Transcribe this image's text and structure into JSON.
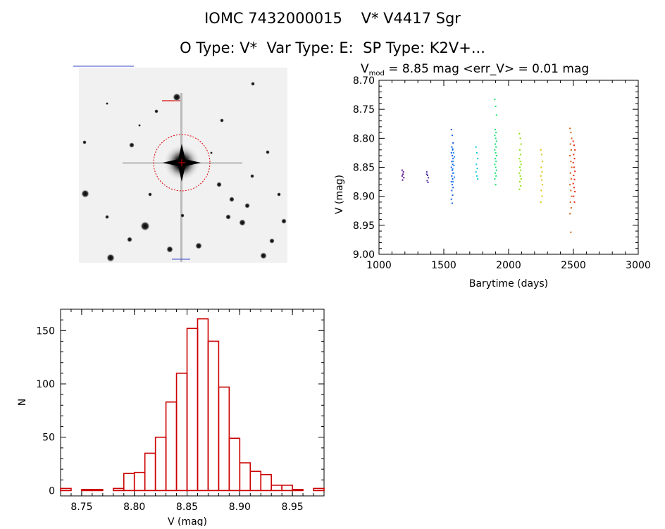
{
  "header": {
    "title_line1": "IOMC 7432000015    V* V4417 Sgr",
    "title_line2": "O Type: V*  Var Type: E:  SP Type: K2V+..."
  },
  "image_panel": {
    "description_tokens": [
      "star-field-thumbnail"
    ],
    "target_circle_color": "#dd0000"
  },
  "chart_data": [
    {
      "type": "scatter",
      "name": "light-curve",
      "title_prefix": "V",
      "title_subscript": "mod",
      "title_rest": " = 8.85 mag <err_V> = 0.01 mag",
      "xlabel": "Barytime (days)",
      "ylabel": "V (mag)",
      "xlim": [
        1000,
        3000
      ],
      "ylim": [
        9.0,
        8.7
      ],
      "y_inverted": true,
      "xticks": [
        "1000",
        "1500",
        "2000",
        "2500",
        "3000"
      ],
      "yticks": [
        "8.70",
        "8.75",
        "8.80",
        "8.85",
        "8.90",
        "8.95",
        "9.00"
      ],
      "groups": [
        {
          "x": 1185,
          "color": "#5a0a8c",
          "y": [
            8.855,
            8.862,
            8.868,
            8.872,
            8.858,
            8.865
          ]
        },
        {
          "x": 1375,
          "color": "#4a2aa0",
          "y": [
            8.858,
            8.864,
            8.868,
            8.873,
            8.876,
            8.862
          ]
        },
        {
          "x": 1565,
          "color": "#1e5ae0",
          "y": [
            8.785,
            8.795,
            8.808,
            8.815,
            8.82,
            8.825,
            8.83,
            8.835,
            8.84,
            8.845,
            8.85,
            8.855,
            8.86,
            8.865,
            8.87,
            8.875,
            8.88,
            8.885,
            8.89,
            8.898,
            8.905,
            8.912
          ]
        },
        {
          "x": 1575,
          "color": "#1e90ff",
          "y": [
            8.818,
            8.825,
            8.832,
            8.84,
            8.847,
            8.853,
            8.86,
            8.867,
            8.875
          ]
        },
        {
          "x": 1755,
          "color": "#10c8d8",
          "y": [
            8.815,
            8.825,
            8.835,
            8.845,
            8.852,
            8.858,
            8.865,
            8.87
          ]
        },
        {
          "x": 1900,
          "color": "#18e070",
          "y": [
            8.733,
            8.745,
            8.76,
            8.785,
            8.79,
            8.795,
            8.8,
            8.805,
            8.81,
            8.815,
            8.82,
            8.825,
            8.83,
            8.835,
            8.84,
            8.845,
            8.85,
            8.855,
            8.86,
            8.865,
            8.87,
            8.88
          ]
        },
        {
          "x": 2090,
          "color": "#8be010",
          "y": [
            8.792,
            8.8,
            8.81,
            8.82,
            8.828,
            8.835,
            8.84,
            8.845,
            8.85,
            8.855,
            8.86,
            8.865,
            8.87,
            8.875,
            8.882,
            8.888
          ]
        },
        {
          "x": 2255,
          "color": "#e0c010",
          "y": [
            8.82,
            8.828,
            8.84,
            8.85,
            8.858,
            8.865,
            8.872,
            8.88,
            8.89,
            8.9,
            8.91
          ]
        },
        {
          "x": 2480,
          "color": "#d06010",
          "y": [
            8.783,
            8.79,
            8.8,
            8.81,
            8.82,
            8.83,
            8.84,
            8.85,
            8.86,
            8.87,
            8.88,
            8.89,
            8.9,
            8.91,
            8.92,
            8.93,
            8.962
          ]
        },
        {
          "x": 2505,
          "color": "#e82010",
          "y": [
            8.805,
            8.812,
            8.82,
            8.828,
            8.835,
            8.842,
            8.85,
            8.857,
            8.864,
            8.871,
            8.878,
            8.885,
            8.892,
            8.9,
            8.91
          ]
        }
      ]
    },
    {
      "type": "bar",
      "name": "histogram",
      "xlabel": "V (mag)",
      "ylabel": "N",
      "xlim": [
        8.73,
        8.98
      ],
      "ylim": [
        -5,
        170
      ],
      "xticks": [
        "8.75",
        "8.80",
        "8.85",
        "8.90",
        "8.95"
      ],
      "yticks": [
        "0",
        "50",
        "100",
        "150"
      ],
      "bin_width": 0.01,
      "bins": [
        {
          "x": 8.735,
          "n": 2
        },
        {
          "x": 8.755,
          "n": 1
        },
        {
          "x": 8.765,
          "n": 1
        },
        {
          "x": 8.785,
          "n": 2
        },
        {
          "x": 8.795,
          "n": 16
        },
        {
          "x": 8.805,
          "n": 17
        },
        {
          "x": 8.815,
          "n": 35
        },
        {
          "x": 8.825,
          "n": 50
        },
        {
          "x": 8.835,
          "n": 83
        },
        {
          "x": 8.845,
          "n": 110
        },
        {
          "x": 8.855,
          "n": 152
        },
        {
          "x": 8.865,
          "n": 161
        },
        {
          "x": 8.875,
          "n": 140
        },
        {
          "x": 8.885,
          "n": 97
        },
        {
          "x": 8.895,
          "n": 49
        },
        {
          "x": 8.905,
          "n": 26
        },
        {
          "x": 8.915,
          "n": 18
        },
        {
          "x": 8.925,
          "n": 15
        },
        {
          "x": 8.935,
          "n": 5
        },
        {
          "x": 8.945,
          "n": 5
        },
        {
          "x": 8.955,
          "n": 1
        },
        {
          "x": 8.975,
          "n": 2
        }
      ],
      "bar_color": "#cc0000"
    }
  ]
}
